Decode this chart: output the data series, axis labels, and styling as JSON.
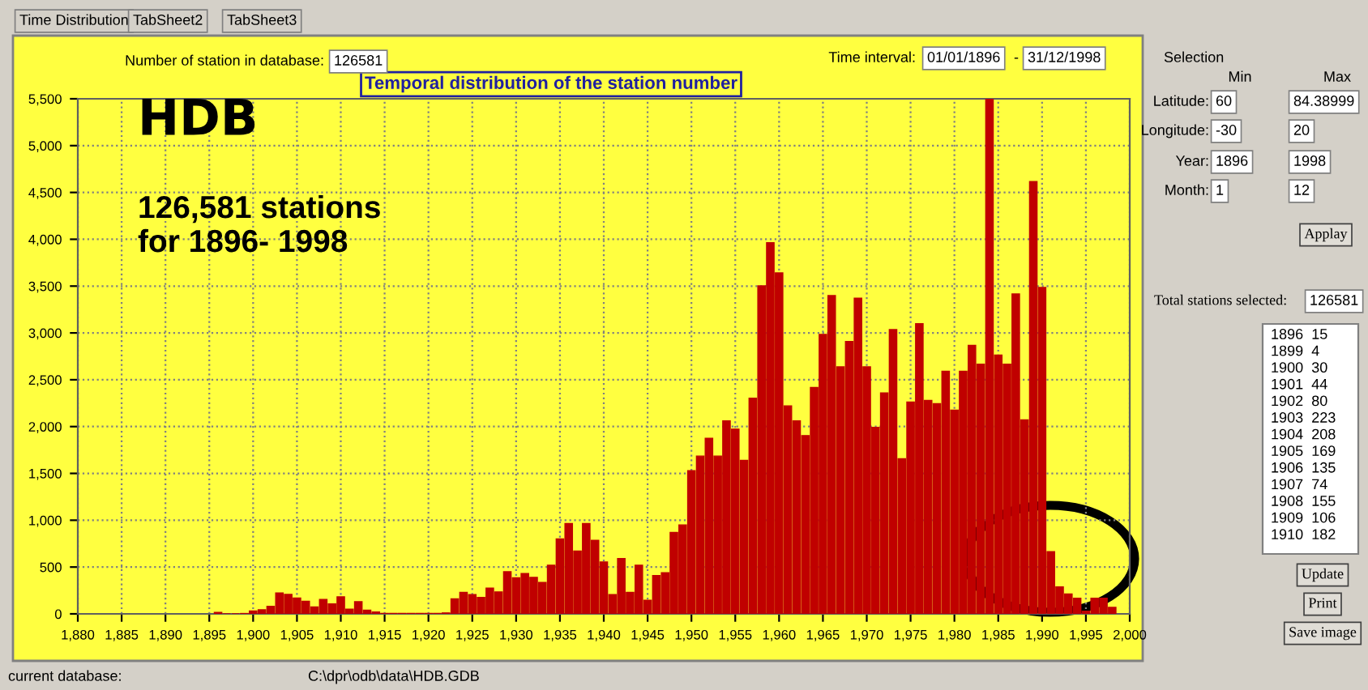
{
  "chart_data": {
    "type": "bar",
    "title": "Temporal distribution of the station number",
    "x": [
      1896,
      1897,
      1898,
      1899,
      1900,
      1901,
      1902,
      1903,
      1904,
      1905,
      1906,
      1907,
      1908,
      1909,
      1910,
      1911,
      1912,
      1913,
      1914,
      1915,
      1916,
      1917,
      1918,
      1919,
      1920,
      1921,
      1922,
      1923,
      1924,
      1925,
      1926,
      1927,
      1928,
      1929,
      1930,
      1931,
      1932,
      1933,
      1934,
      1935,
      1936,
      1937,
      1938,
      1939,
      1940,
      1941,
      1942,
      1943,
      1944,
      1945,
      1946,
      1947,
      1948,
      1949,
      1950,
      1951,
      1952,
      1953,
      1954,
      1955,
      1956,
      1957,
      1958,
      1959,
      1960,
      1961,
      1962,
      1963,
      1964,
      1965,
      1966,
      1967,
      1968,
      1969,
      1970,
      1971,
      1972,
      1973,
      1974,
      1975,
      1976,
      1977,
      1978,
      1979,
      1980,
      1981,
      1982,
      1983,
      1984,
      1985,
      1986,
      1987,
      1988,
      1989,
      1990,
      1991,
      1992,
      1993,
      1994,
      1995,
      1996,
      1997,
      1998
    ],
    "values": [
      15,
      0,
      0,
      4,
      30,
      44,
      80,
      223,
      208,
      169,
      135,
      74,
      155,
      106,
      182,
      50,
      130,
      40,
      20,
      5,
      5,
      5,
      5,
      5,
      5,
      5,
      10,
      160,
      230,
      205,
      175,
      275,
      235,
      450,
      385,
      430,
      390,
      335,
      520,
      800,
      965,
      670,
      965,
      785,
      555,
      205,
      590,
      230,
      520,
      145,
      410,
      440,
      870,
      950,
      1529,
      1685,
      1875,
      1685,
      2060,
      1973,
      1639,
      2302,
      3502,
      3964,
      3641,
      2221,
      2060,
      1904,
      2418,
      2983,
      3399,
      2637,
      2908,
      3370,
      2637,
      1991,
      2360,
      3035,
      1656,
      2262,
      3098,
      2279,
      2245,
      2591,
      2175,
      2591,
      2868,
      2666,
      5500,
      2764,
      2666,
      3416,
      2071,
      4616,
      3485,
      664,
      289,
      213,
      167,
      29,
      167,
      167,
      69
    ],
    "color": "#c00000",
    "xlim": [
      1880,
      2000
    ],
    "xticks": [
      {
        "value": 1880,
        "label": "1,880"
      },
      {
        "value": 1885,
        "label": "1,885"
      },
      {
        "value": 1890,
        "label": "1,890"
      },
      {
        "value": 1895,
        "label": "1,895"
      },
      {
        "value": 1900,
        "label": "1,900"
      },
      {
        "value": 1905,
        "label": "1,905"
      },
      {
        "value": 1910,
        "label": "1,910"
      },
      {
        "value": 1915,
        "label": "1,915"
      },
      {
        "value": 1920,
        "label": "1,920"
      },
      {
        "value": 1925,
        "label": "1,925"
      },
      {
        "value": 1930,
        "label": "1,930"
      },
      {
        "value": 1935,
        "label": "1,935"
      },
      {
        "value": 1940,
        "label": "1,940"
      },
      {
        "value": 1945,
        "label": "1,945"
      },
      {
        "value": 1950,
        "label": "1,950"
      },
      {
        "value": 1955,
        "label": "1,955"
      },
      {
        "value": 1960,
        "label": "1,960"
      },
      {
        "value": 1965,
        "label": "1,965"
      },
      {
        "value": 1970,
        "label": "1,970"
      },
      {
        "value": 1975,
        "label": "1,975"
      },
      {
        "value": 1980,
        "label": "1,980"
      },
      {
        "value": 1985,
        "label": "1,985"
      },
      {
        "value": 1990,
        "label": "1,990"
      },
      {
        "value": 1995,
        "label": "1,995"
      },
      {
        "value": 2000,
        "label": "2,000"
      }
    ],
    "ylim": [
      0,
      5500
    ],
    "yticks": [
      0,
      500,
      {
        "value": 1000,
        "label": "1,000"
      },
      {
        "value": 1500,
        "label": "1,500"
      },
      {
        "value": 2000,
        "label": "2,000"
      },
      {
        "value": 2500,
        "label": "2,500"
      },
      {
        "value": 3000,
        "label": "3,000"
      },
      {
        "value": 3500,
        "label": "3,500"
      },
      {
        "value": 4000,
        "label": "4,000"
      },
      {
        "value": 4500,
        "label": "4,500"
      },
      {
        "value": 5000,
        "label": "5,000"
      },
      {
        "value": 5500,
        "label": "5,500"
      }
    ],
    "grid": true,
    "annotations": [
      "Time Distribution",
      "TabSheet2",
      "TabSheet3",
      "Number of station in database:",
      "126581",
      "Time interval:",
      "01/01/1896",
      "-",
      "31/12/1998",
      "HDB",
      "126,581 stations\nfor 1896- 1998",
      "Selection",
      "Min",
      "Max",
      "Latitude:",
      "60",
      "84.38999",
      "Longitude:",
      "-30",
      "20",
      "Year:",
      "1896",
      "1998",
      "Month:",
      "1",
      "12",
      "Applay",
      "Total stations selected:",
      "126581",
      "1896  15",
      "1899  4",
      "1900  30",
      "1901  44",
      "1902  80",
      "1903  223",
      "1904  208",
      "1905  169",
      "1906  135",
      "1907  74",
      "1908  155",
      "1909  106",
      "1910  182",
      "Update",
      "Print",
      "Save image",
      "current database:",
      "C:\\dpr\\odb\\data\\HDB.GDB"
    ]
  }
}
